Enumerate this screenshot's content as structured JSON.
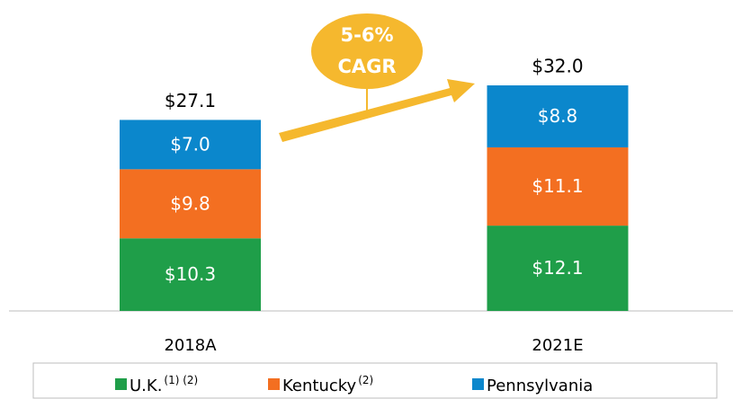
{
  "chart_data": {
    "type": "stacked_bar",
    "categories": [
      "2018A",
      "2021E"
    ],
    "series": [
      {
        "name": "U.K.",
        "name_superscript": "(1) (2)",
        "color": "#1f9e49",
        "values": [
          10.3,
          12.1
        ],
        "value_labels": [
          "$10.3",
          "$12.1"
        ]
      },
      {
        "name": "Kentucky",
        "name_superscript": "(2)",
        "color": "#f36f21",
        "values": [
          9.8,
          11.1
        ],
        "value_labels": [
          "$9.8",
          "$11.1"
        ]
      },
      {
        "name": "Pennsylvania",
        "color": "#0b87cc",
        "values": [
          7.0,
          8.8
        ],
        "value_labels": [
          "$7.0",
          "$8.8"
        ]
      }
    ],
    "totals": [
      27.1,
      32.0
    ],
    "total_labels": [
      "$27.1",
      "$32.0"
    ],
    "annotation": [
      "5-6%",
      "CAGR"
    ]
  }
}
